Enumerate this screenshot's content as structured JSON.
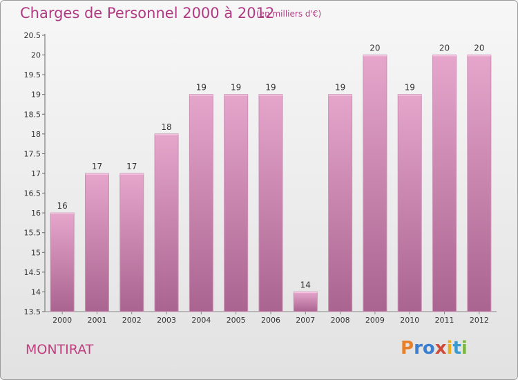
{
  "header": {
    "title": "Charges de Personnel 2000 à 2012",
    "subtitle": "(en milliers d'€)"
  },
  "footer": {
    "commune": "MONTIRAT",
    "logo_text": "Proxiti"
  },
  "colors": {
    "title": "#b03a82",
    "bar_top": "#e6a6cc",
    "bar_bottom": "#a9648f",
    "logo_letters": [
      "#e8802a",
      "#3a7fd0",
      "#3a7fd0",
      "#d04a3a",
      "#e8b020",
      "#3a9ad0",
      "#7ab840"
    ]
  },
  "chart_data": {
    "type": "bar",
    "title": "Charges de Personnel 2000 à 2012",
    "subtitle": "(en milliers d'€)",
    "categories": [
      "2000",
      "2001",
      "2002",
      "2003",
      "2004",
      "2005",
      "2006",
      "2007",
      "2008",
      "2009",
      "2010",
      "2011",
      "2012"
    ],
    "values": [
      16,
      17,
      17,
      18,
      19,
      19,
      19,
      14,
      19,
      20,
      19,
      20,
      20
    ],
    "data_labels": [
      "16",
      "17",
      "17",
      "18",
      "19",
      "19",
      "19",
      "14",
      "19",
      "20",
      "19",
      "20",
      "20"
    ],
    "ylim": [
      13.5,
      20.5
    ],
    "yticks": [
      13.5,
      14,
      14.5,
      15,
      15.5,
      16,
      16.5,
      17,
      17.5,
      18,
      18.5,
      19,
      19.5,
      20,
      20.5
    ],
    "ytick_labels": [
      "13.5",
      "14",
      "14.5",
      "15",
      "15.5",
      "16",
      "16.5",
      "17",
      "17.5",
      "18",
      "18.5",
      "19",
      "19.5",
      "20",
      "20.5"
    ],
    "xlabel": "",
    "ylabel": "",
    "grid": false,
    "legend": "none"
  }
}
